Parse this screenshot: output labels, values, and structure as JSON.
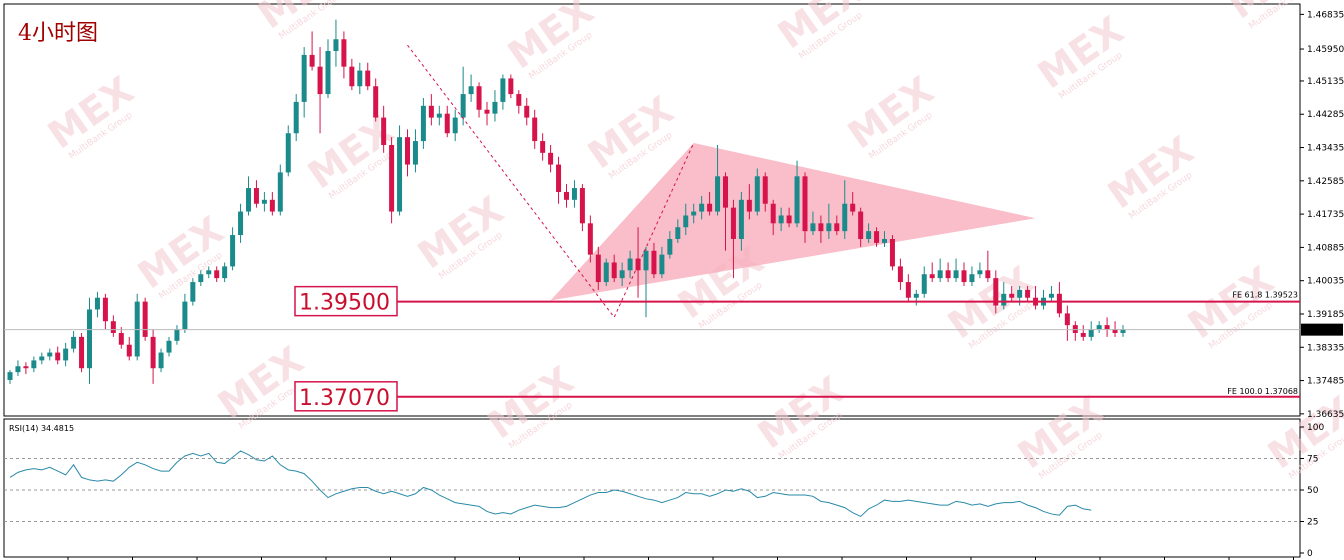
{
  "title": "4小时图",
  "colors": {
    "up": "#1a8a8a",
    "down": "#d6134a",
    "level_line": "#d6134a",
    "triangle": "#f7a8b8",
    "rsi_line": "#2a8aa8",
    "grid": "#c8c8c8"
  },
  "watermark": {
    "brand": "MEX",
    "sub": "MultiBank Group"
  },
  "levels": [
    {
      "label": "1.39500",
      "price": 1.395
    },
    {
      "label": "1.37070",
      "price": 1.3707
    }
  ],
  "fib_labels": [
    {
      "text": "FE 61.8  1.39523",
      "price": 1.39523
    },
    {
      "text": "FE 100.0  1.37068",
      "price": 1.37068
    }
  ],
  "current_price": {
    "label": "1.38785",
    "price": 1.38785
  },
  "rsi_label": "RSI(14) 34.4815",
  "chart_data": [
    {
      "type": "candlestick",
      "y_ticks": [
        "1.46835",
        "1.45950",
        "1.45135",
        "1.44285",
        "1.43435",
        "1.42585",
        "1.41735",
        "1.40885",
        "1.40035",
        "1.39185",
        "1.38335",
        "1.37485",
        "1.36635"
      ],
      "y_tick_values": [
        1.46835,
        1.4595,
        1.45135,
        1.44285,
        1.43435,
        1.42585,
        1.41735,
        1.40885,
        1.40035,
        1.39185,
        1.38335,
        1.37485,
        1.36635
      ],
      "ylim": [
        1.3658,
        1.471
      ],
      "candles": [
        [
          1.375,
          1.377,
          1.374,
          1.3775
        ],
        [
          1.377,
          1.3785,
          1.376,
          1.38
        ],
        [
          1.3785,
          1.378,
          1.3765,
          1.3795
        ],
        [
          1.378,
          1.38,
          1.377,
          1.381
        ],
        [
          1.38,
          1.381,
          1.379,
          1.382
        ],
        [
          1.381,
          1.382,
          1.38,
          1.383
        ],
        [
          1.382,
          1.38,
          1.379,
          1.3835
        ],
        [
          1.38,
          1.383,
          1.3785,
          1.3845
        ],
        [
          1.383,
          1.386,
          1.382,
          1.3875
        ],
        [
          1.386,
          1.378,
          1.377,
          1.387
        ],
        [
          1.378,
          1.393,
          1.374,
          1.396
        ],
        [
          1.393,
          1.396,
          1.391,
          1.3975
        ],
        [
          1.396,
          1.39,
          1.388,
          1.397
        ],
        [
          1.39,
          1.387,
          1.386,
          1.3915
        ],
        [
          1.387,
          1.384,
          1.383,
          1.3885
        ],
        [
          1.384,
          1.381,
          1.38,
          1.386
        ],
        [
          1.381,
          1.395,
          1.38,
          1.397
        ],
        [
          1.395,
          1.386,
          1.385,
          1.396
        ],
        [
          1.386,
          1.378,
          1.374,
          1.388
        ],
        [
          1.378,
          1.382,
          1.377,
          1.383
        ],
        [
          1.382,
          1.385,
          1.381,
          1.386
        ],
        [
          1.385,
          1.388,
          1.384,
          1.389
        ],
        [
          1.388,
          1.395,
          1.387,
          1.397
        ],
        [
          1.395,
          1.4,
          1.394,
          1.401
        ],
        [
          1.4,
          1.402,
          1.399,
          1.403
        ],
        [
          1.402,
          1.403,
          1.401,
          1.404
        ],
        [
          1.403,
          1.401,
          1.4,
          1.404
        ],
        [
          1.401,
          1.404,
          1.4,
          1.405
        ],
        [
          1.404,
          1.412,
          1.403,
          1.414
        ],
        [
          1.412,
          1.418,
          1.41,
          1.42
        ],
        [
          1.418,
          1.424,
          1.417,
          1.427
        ],
        [
          1.424,
          1.42,
          1.419,
          1.426
        ],
        [
          1.42,
          1.421,
          1.418,
          1.423
        ],
        [
          1.421,
          1.418,
          1.417,
          1.423
        ],
        [
          1.418,
          1.428,
          1.417,
          1.43
        ],
        [
          1.428,
          1.438,
          1.427,
          1.44
        ],
        [
          1.438,
          1.446,
          1.436,
          1.448
        ],
        [
          1.446,
          1.458,
          1.442,
          1.46
        ],
        [
          1.458,
          1.455,
          1.454,
          1.464
        ],
        [
          1.455,
          1.448,
          1.438,
          1.46
        ],
        [
          1.448,
          1.459,
          1.447,
          1.462
        ],
        [
          1.459,
          1.462,
          1.455,
          1.467
        ],
        [
          1.462,
          1.455,
          1.452,
          1.464
        ],
        [
          1.455,
          1.45,
          1.449,
          1.457
        ],
        [
          1.45,
          1.454,
          1.448,
          1.456
        ],
        [
          1.454,
          1.45,
          1.449,
          1.456
        ],
        [
          1.45,
          1.442,
          1.441,
          1.452
        ],
        [
          1.442,
          1.435,
          1.433,
          1.445
        ],
        [
          1.435,
          1.418,
          1.415,
          1.437
        ],
        [
          1.418,
          1.437,
          1.417,
          1.44
        ],
        [
          1.437,
          1.43,
          1.427,
          1.439
        ],
        [
          1.43,
          1.436,
          1.428,
          1.439
        ],
        [
          1.436,
          1.445,
          1.434,
          1.447
        ],
        [
          1.445,
          1.442,
          1.44,
          1.448
        ],
        [
          1.442,
          1.443,
          1.44,
          1.445
        ],
        [
          1.443,
          1.438,
          1.437,
          1.445
        ],
        [
          1.438,
          1.442,
          1.436,
          1.444
        ],
        [
          1.442,
          1.448,
          1.44,
          1.455
        ],
        [
          1.448,
          1.45,
          1.446,
          1.453
        ],
        [
          1.45,
          1.444,
          1.442,
          1.451
        ],
        [
          1.444,
          1.443,
          1.44,
          1.446
        ],
        [
          1.443,
          1.446,
          1.441,
          1.449
        ],
        [
          1.446,
          1.452,
          1.444,
          1.453
        ],
        [
          1.452,
          1.448,
          1.447,
          1.453
        ],
        [
          1.448,
          1.445,
          1.443,
          1.449
        ],
        [
          1.445,
          1.442,
          1.44,
          1.447
        ],
        [
          1.442,
          1.436,
          1.434,
          1.444
        ],
        [
          1.436,
          1.433,
          1.431,
          1.438
        ],
        [
          1.433,
          1.43,
          1.428,
          1.435
        ],
        [
          1.43,
          1.423,
          1.42,
          1.432
        ],
        [
          1.423,
          1.421,
          1.419,
          1.425
        ],
        [
          1.421,
          1.424,
          1.419,
          1.426
        ],
        [
          1.424,
          1.415,
          1.413,
          1.425
        ],
        [
          1.415,
          1.407,
          1.405,
          1.417
        ],
        [
          1.407,
          1.4,
          1.398,
          1.409
        ],
        [
          1.4,
          1.405,
          1.399,
          1.406
        ],
        [
          1.405,
          1.401,
          1.4,
          1.407
        ],
        [
          1.401,
          1.403,
          1.399,
          1.405
        ],
        [
          1.403,
          1.406,
          1.401,
          1.408
        ],
        [
          1.406,
          1.403,
          1.396,
          1.414
        ],
        [
          1.403,
          1.408,
          1.391,
          1.409
        ],
        [
          1.408,
          1.402,
          1.401,
          1.41
        ],
        [
          1.402,
          1.407,
          1.401,
          1.409
        ],
        [
          1.407,
          1.411,
          1.406,
          1.413
        ],
        [
          1.411,
          1.414,
          1.41,
          1.416
        ],
        [
          1.414,
          1.417,
          1.412,
          1.42
        ],
        [
          1.417,
          1.418,
          1.415,
          1.42
        ],
        [
          1.418,
          1.42,
          1.416,
          1.422
        ],
        [
          1.42,
          1.418,
          1.417,
          1.423
        ],
        [
          1.418,
          1.427,
          1.417,
          1.435
        ],
        [
          1.427,
          1.419,
          1.408,
          1.428
        ],
        [
          1.419,
          1.411,
          1.401,
          1.421
        ],
        [
          1.411,
          1.421,
          1.408,
          1.423
        ],
        [
          1.421,
          1.418,
          1.416,
          1.425
        ],
        [
          1.418,
          1.427,
          1.417,
          1.429
        ],
        [
          1.427,
          1.42,
          1.418,
          1.428
        ],
        [
          1.42,
          1.415,
          1.412,
          1.421
        ],
        [
          1.415,
          1.417,
          1.413,
          1.419
        ],
        [
          1.417,
          1.415,
          1.414,
          1.419
        ],
        [
          1.415,
          1.427,
          1.414,
          1.431
        ],
        [
          1.427,
          1.413,
          1.41,
          1.428
        ],
        [
          1.413,
          1.415,
          1.412,
          1.418
        ],
        [
          1.415,
          1.413,
          1.41,
          1.417
        ],
        [
          1.413,
          1.415,
          1.411,
          1.42
        ],
        [
          1.415,
          1.413,
          1.412,
          1.417
        ],
        [
          1.413,
          1.42,
          1.411,
          1.426
        ],
        [
          1.42,
          1.418,
          1.417,
          1.423
        ],
        [
          1.418,
          1.411,
          1.409,
          1.419
        ],
        [
          1.411,
          1.413,
          1.41,
          1.415
        ],
        [
          1.413,
          1.41,
          1.409,
          1.414
        ],
        [
          1.41,
          1.411,
          1.409,
          1.413
        ],
        [
          1.411,
          1.404,
          1.403,
          1.412
        ],
        [
          1.404,
          1.4,
          1.398,
          1.406
        ],
        [
          1.4,
          1.396,
          1.395,
          1.402
        ],
        [
          1.396,
          1.397,
          1.394,
          1.398
        ],
        [
          1.397,
          1.402,
          1.396,
          1.404
        ],
        [
          1.402,
          1.401,
          1.4,
          1.405
        ],
        [
          1.401,
          1.403,
          1.4,
          1.406
        ],
        [
          1.403,
          1.401,
          1.4,
          1.405
        ],
        [
          1.401,
          1.403,
          1.4,
          1.406
        ],
        [
          1.403,
          1.4,
          1.399,
          1.405
        ],
        [
          1.4,
          1.402,
          1.399,
          1.404
        ],
        [
          1.402,
          1.403,
          1.401,
          1.405
        ],
        [
          1.403,
          1.401,
          1.4,
          1.408
        ],
        [
          1.401,
          1.394,
          1.392,
          1.403
        ],
        [
          1.394,
          1.397,
          1.393,
          1.4
        ],
        [
          1.397,
          1.396,
          1.395,
          1.399
        ],
        [
          1.396,
          1.398,
          1.394,
          1.399
        ],
        [
          1.398,
          1.396,
          1.395,
          1.399
        ],
        [
          1.396,
          1.394,
          1.393,
          1.399
        ],
        [
          1.394,
          1.396,
          1.393,
          1.398
        ],
        [
          1.396,
          1.397,
          1.395,
          1.399
        ],
        [
          1.397,
          1.392,
          1.391,
          1.4
        ],
        [
          1.392,
          1.389,
          1.385,
          1.394
        ],
        [
          1.389,
          1.387,
          1.385,
          1.39
        ],
        [
          1.387,
          1.386,
          1.385,
          1.389
        ],
        [
          1.386,
          1.388,
          1.385,
          1.39
        ],
        [
          1.388,
          1.389,
          1.387,
          1.39
        ],
        [
          1.389,
          1.388,
          1.386,
          1.391
        ],
        [
          1.388,
          1.387,
          1.386,
          1.39
        ],
        [
          1.387,
          1.388,
          1.386,
          1.389
        ]
      ]
    },
    {
      "type": "line",
      "name": "RSI(14)",
      "y_ticks": [
        "100",
        "75",
        "50",
        "25",
        "0"
      ],
      "y_tick_values": [
        100,
        75,
        50,
        25,
        0
      ],
      "ylim": [
        0,
        100
      ],
      "values": [
        60,
        64,
        66,
        67,
        66,
        68,
        65,
        62,
        70,
        60,
        58,
        57,
        58,
        57,
        62,
        68,
        72,
        70,
        67,
        65,
        65,
        72,
        77,
        79,
        77,
        79,
        72,
        71,
        76,
        81,
        78,
        74,
        73,
        77,
        70,
        66,
        65,
        63,
        57,
        50,
        44,
        47,
        49,
        51,
        52,
        52,
        49,
        47,
        49,
        47,
        45,
        47,
        52,
        50,
        46,
        43,
        40,
        39,
        38,
        37,
        33,
        31,
        32,
        31,
        34,
        36,
        38,
        37,
        36,
        36,
        37,
        40,
        43,
        46,
        48,
        48,
        50,
        49,
        47,
        45,
        43,
        42,
        40,
        42,
        44,
        48,
        47,
        47,
        45,
        47,
        50,
        49,
        51,
        49,
        44,
        45,
        48,
        47,
        46,
        46,
        46,
        45,
        41,
        40,
        38,
        36,
        32,
        29,
        35,
        38,
        42,
        41,
        41,
        42,
        41,
        40,
        39,
        38,
        38,
        41,
        40,
        38,
        39,
        37,
        39,
        40,
        40,
        41,
        38,
        36,
        33,
        31,
        30,
        37,
        38,
        35,
        34
      ]
    }
  ]
}
